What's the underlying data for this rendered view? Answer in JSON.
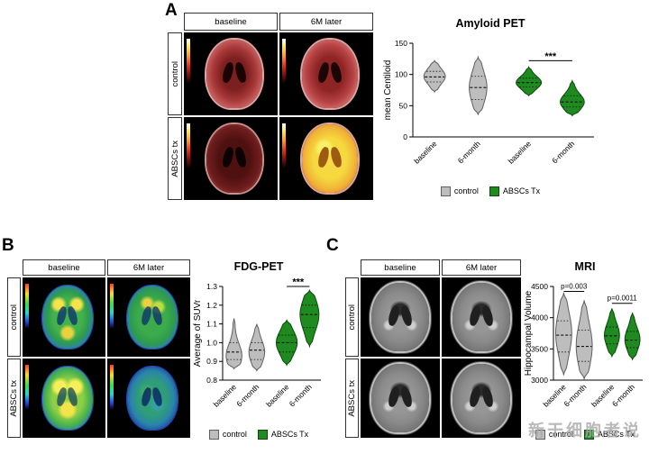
{
  "watermark": "新干细胞者说",
  "panels": {
    "A": {
      "label": "A",
      "col_headers": [
        "baseline",
        "6M later"
      ],
      "row_labels": [
        "control",
        "ABSCs tx"
      ]
    },
    "B": {
      "label": "B",
      "col_headers": [
        "baseline",
        "6M later"
      ],
      "row_labels": [
        "control",
        "ABSCs tx"
      ]
    },
    "C": {
      "label": "C",
      "col_headers": [
        "baseline",
        "6M later"
      ],
      "row_labels": [
        "control",
        "ABSCs tx"
      ]
    }
  },
  "chart_data": [
    {
      "id": "amyloid-pet",
      "type": "violin",
      "title": "Amyloid PET",
      "ylabel": "mean Centiloid",
      "ylim": [
        0,
        150
      ],
      "yticks": [
        "0",
        "50",
        "100",
        "150"
      ],
      "categories": [
        "baseline",
        "6-month",
        "baseline",
        "6-month"
      ],
      "legend": [
        {
          "label": "control",
          "fill": "#bdbdbd",
          "stroke": "#5f5f5f"
        },
        {
          "label": "ABSCs Tx",
          "fill": "#1f8a1f",
          "stroke": "#0c4a0c"
        }
      ],
      "violins": [
        {
          "label": "baseline",
          "group": 0,
          "min": 72,
          "max": 122,
          "peak": 97,
          "median": 96,
          "q1": 88,
          "q3": 105,
          "width": 0.85
        },
        {
          "label": "6-month",
          "group": 0,
          "min": 36,
          "max": 128,
          "peak": 79,
          "median": 79,
          "q1": 60,
          "q3": 97,
          "width": 0.7
        },
        {
          "label": "baseline",
          "group": 1,
          "min": 66,
          "max": 112,
          "peak": 87,
          "median": 87,
          "q1": 80,
          "q3": 94,
          "width": 1.0
        },
        {
          "label": "6-month",
          "group": 1,
          "min": 34,
          "max": 90,
          "peak": 56,
          "median": 56,
          "q1": 48,
          "q3": 66,
          "width": 0.95
        }
      ],
      "annotations": [
        {
          "from": 2,
          "to": 3,
          "y": 122,
          "text": "***"
        }
      ]
    },
    {
      "id": "fdg-pet",
      "type": "violin",
      "title": "FDG-PET",
      "ylabel": "Average of SUVr",
      "ylim": [
        0.8,
        1.3
      ],
      "yticks": [
        "0.8",
        "0.9",
        "1.0",
        "1.1",
        "1.2",
        "1.3"
      ],
      "categories": [
        "baseline",
        "6-month",
        "baseline",
        "6-month"
      ],
      "legend": [
        {
          "label": "control",
          "fill": "#bdbdbd",
          "stroke": "#5f5f5f"
        },
        {
          "label": "ABSCs Tx",
          "fill": "#1f8a1f",
          "stroke": "#0c4a0c"
        }
      ],
      "violins": [
        {
          "label": "baseline",
          "group": 0,
          "min": 0.86,
          "max": 1.13,
          "peak": 0.93,
          "median": 0.95,
          "q1": 0.91,
          "q3": 1.0,
          "width": 0.75
        },
        {
          "label": "6-month",
          "group": 0,
          "min": 0.85,
          "max": 1.1,
          "peak": 0.95,
          "median": 0.96,
          "q1": 0.91,
          "q3": 1.0,
          "width": 0.75
        },
        {
          "label": "baseline",
          "group": 1,
          "min": 0.88,
          "max": 1.12,
          "peak": 1.0,
          "median": 1.0,
          "q1": 0.95,
          "q3": 1.04,
          "width": 1.0
        },
        {
          "label": "6-month",
          "group": 1,
          "min": 0.98,
          "max": 1.28,
          "peak": 1.15,
          "median": 1.15,
          "q1": 1.08,
          "q3": 1.2,
          "width": 0.9
        }
      ],
      "annotations": [
        {
          "from": 2,
          "to": 3,
          "y": 1.3,
          "text": "***"
        }
      ]
    },
    {
      "id": "mri",
      "type": "violin",
      "title": "MRI",
      "ylabel": "Hippocampal Volume",
      "ylim": [
        3000,
        4500
      ],
      "yticks": [
        "3000",
        "3500",
        "4000",
        "4500"
      ],
      "categories": [
        "baseline",
        "6-month",
        "baseline",
        "6-month"
      ],
      "legend": [
        {
          "label": "control",
          "fill": "#bdbdbd",
          "stroke": "#5f5f5f"
        },
        {
          "label": "ABSCs Tx",
          "fill": "#1f8a1f",
          "stroke": "#0c4a0c"
        }
      ],
      "violins": [
        {
          "label": "baseline",
          "group": 0,
          "min": 3080,
          "max": 4400,
          "peak": 3750,
          "median": 3720,
          "q1": 3450,
          "q3": 3950,
          "width": 0.85
        },
        {
          "label": "6-month",
          "group": 0,
          "min": 3020,
          "max": 4280,
          "peak": 3550,
          "median": 3540,
          "q1": 3300,
          "q3": 3800,
          "width": 0.85
        },
        {
          "label": "baseline",
          "group": 1,
          "min": 3380,
          "max": 4150,
          "peak": 3720,
          "median": 3710,
          "q1": 3580,
          "q3": 3850,
          "width": 0.8
        },
        {
          "label": "6-month",
          "group": 1,
          "min": 3330,
          "max": 4080,
          "peak": 3650,
          "median": 3640,
          "q1": 3520,
          "q3": 3780,
          "width": 0.8
        }
      ],
      "annotations": [
        {
          "from": 0,
          "to": 1,
          "y": 4420,
          "text": "p=0.003"
        },
        {
          "from": 2,
          "to": 3,
          "y": 4230,
          "text": "p=0.0011"
        }
      ]
    }
  ]
}
